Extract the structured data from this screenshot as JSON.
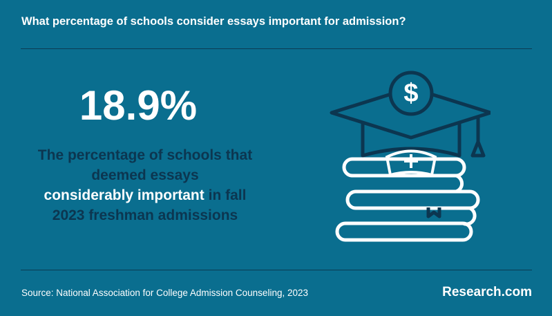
{
  "header": {
    "title": "What percentage of schools consider essays important for admission?"
  },
  "stat": {
    "value": "18.9%",
    "description": {
      "line1": "The percentage of schools that",
      "line2": "deemed essays",
      "highlight": "considerably important",
      "line3_rest": "in fall",
      "line4": "2023 freshman admissions"
    }
  },
  "footer": {
    "source": "Source: National Association for College Admission Counseling, 2023",
    "brand": "Research.com"
  }
}
